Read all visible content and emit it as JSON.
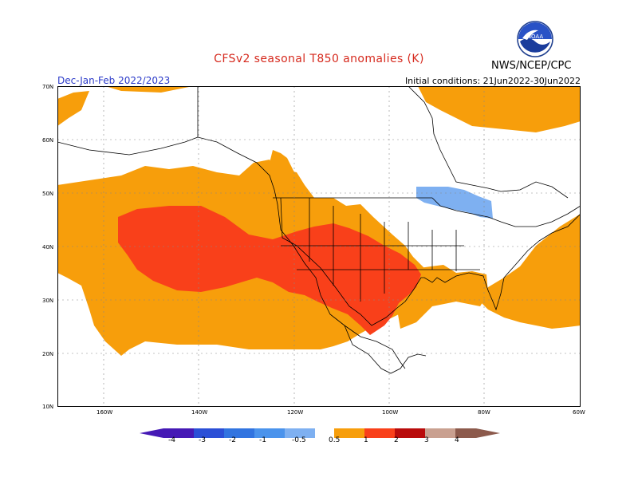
{
  "header": {
    "title": "CFSv2 seasonal T850 anomalies (K)",
    "season": "Dec-Jan-Feb 2022/2023",
    "initial_conditions": "Initial conditions: 21Jun2022-30Jun2022",
    "agency": "NWS/NCEP/CPC",
    "logo_text": "NOAA"
  },
  "map": {
    "region": "North America and North Pacific",
    "lat_labels": [
      "70N",
      "60N",
      "50N",
      "40N",
      "30N",
      "20N",
      "10N"
    ],
    "lon_labels": [
      "160W",
      "140W",
      "120W",
      "100W",
      "80W",
      "60W"
    ],
    "anomaly_areas": [
      {
        "name": "Warm anomaly 0.5-1 K",
        "color": "#f79e0b"
      },
      {
        "name": "Warm anomaly 1-2 K",
        "color": "#f9401a"
      },
      {
        "name": "Cold anomaly -0.5 to -1 K",
        "color": "#7eb0f1"
      }
    ]
  },
  "colorbar": {
    "labels": [
      "-4",
      "-3",
      "-2",
      "-1",
      "-0.5",
      "0.5",
      "1",
      "2",
      "3",
      "4"
    ],
    "colors": [
      "#4519b5",
      "#2b4fd6",
      "#3174e0",
      "#4a93ec",
      "#7eb0f1",
      "#ffffff",
      "#f79e0b",
      "#f9401a",
      "#b90b0b",
      "#c9a090",
      "#8c5a4c"
    ]
  }
}
